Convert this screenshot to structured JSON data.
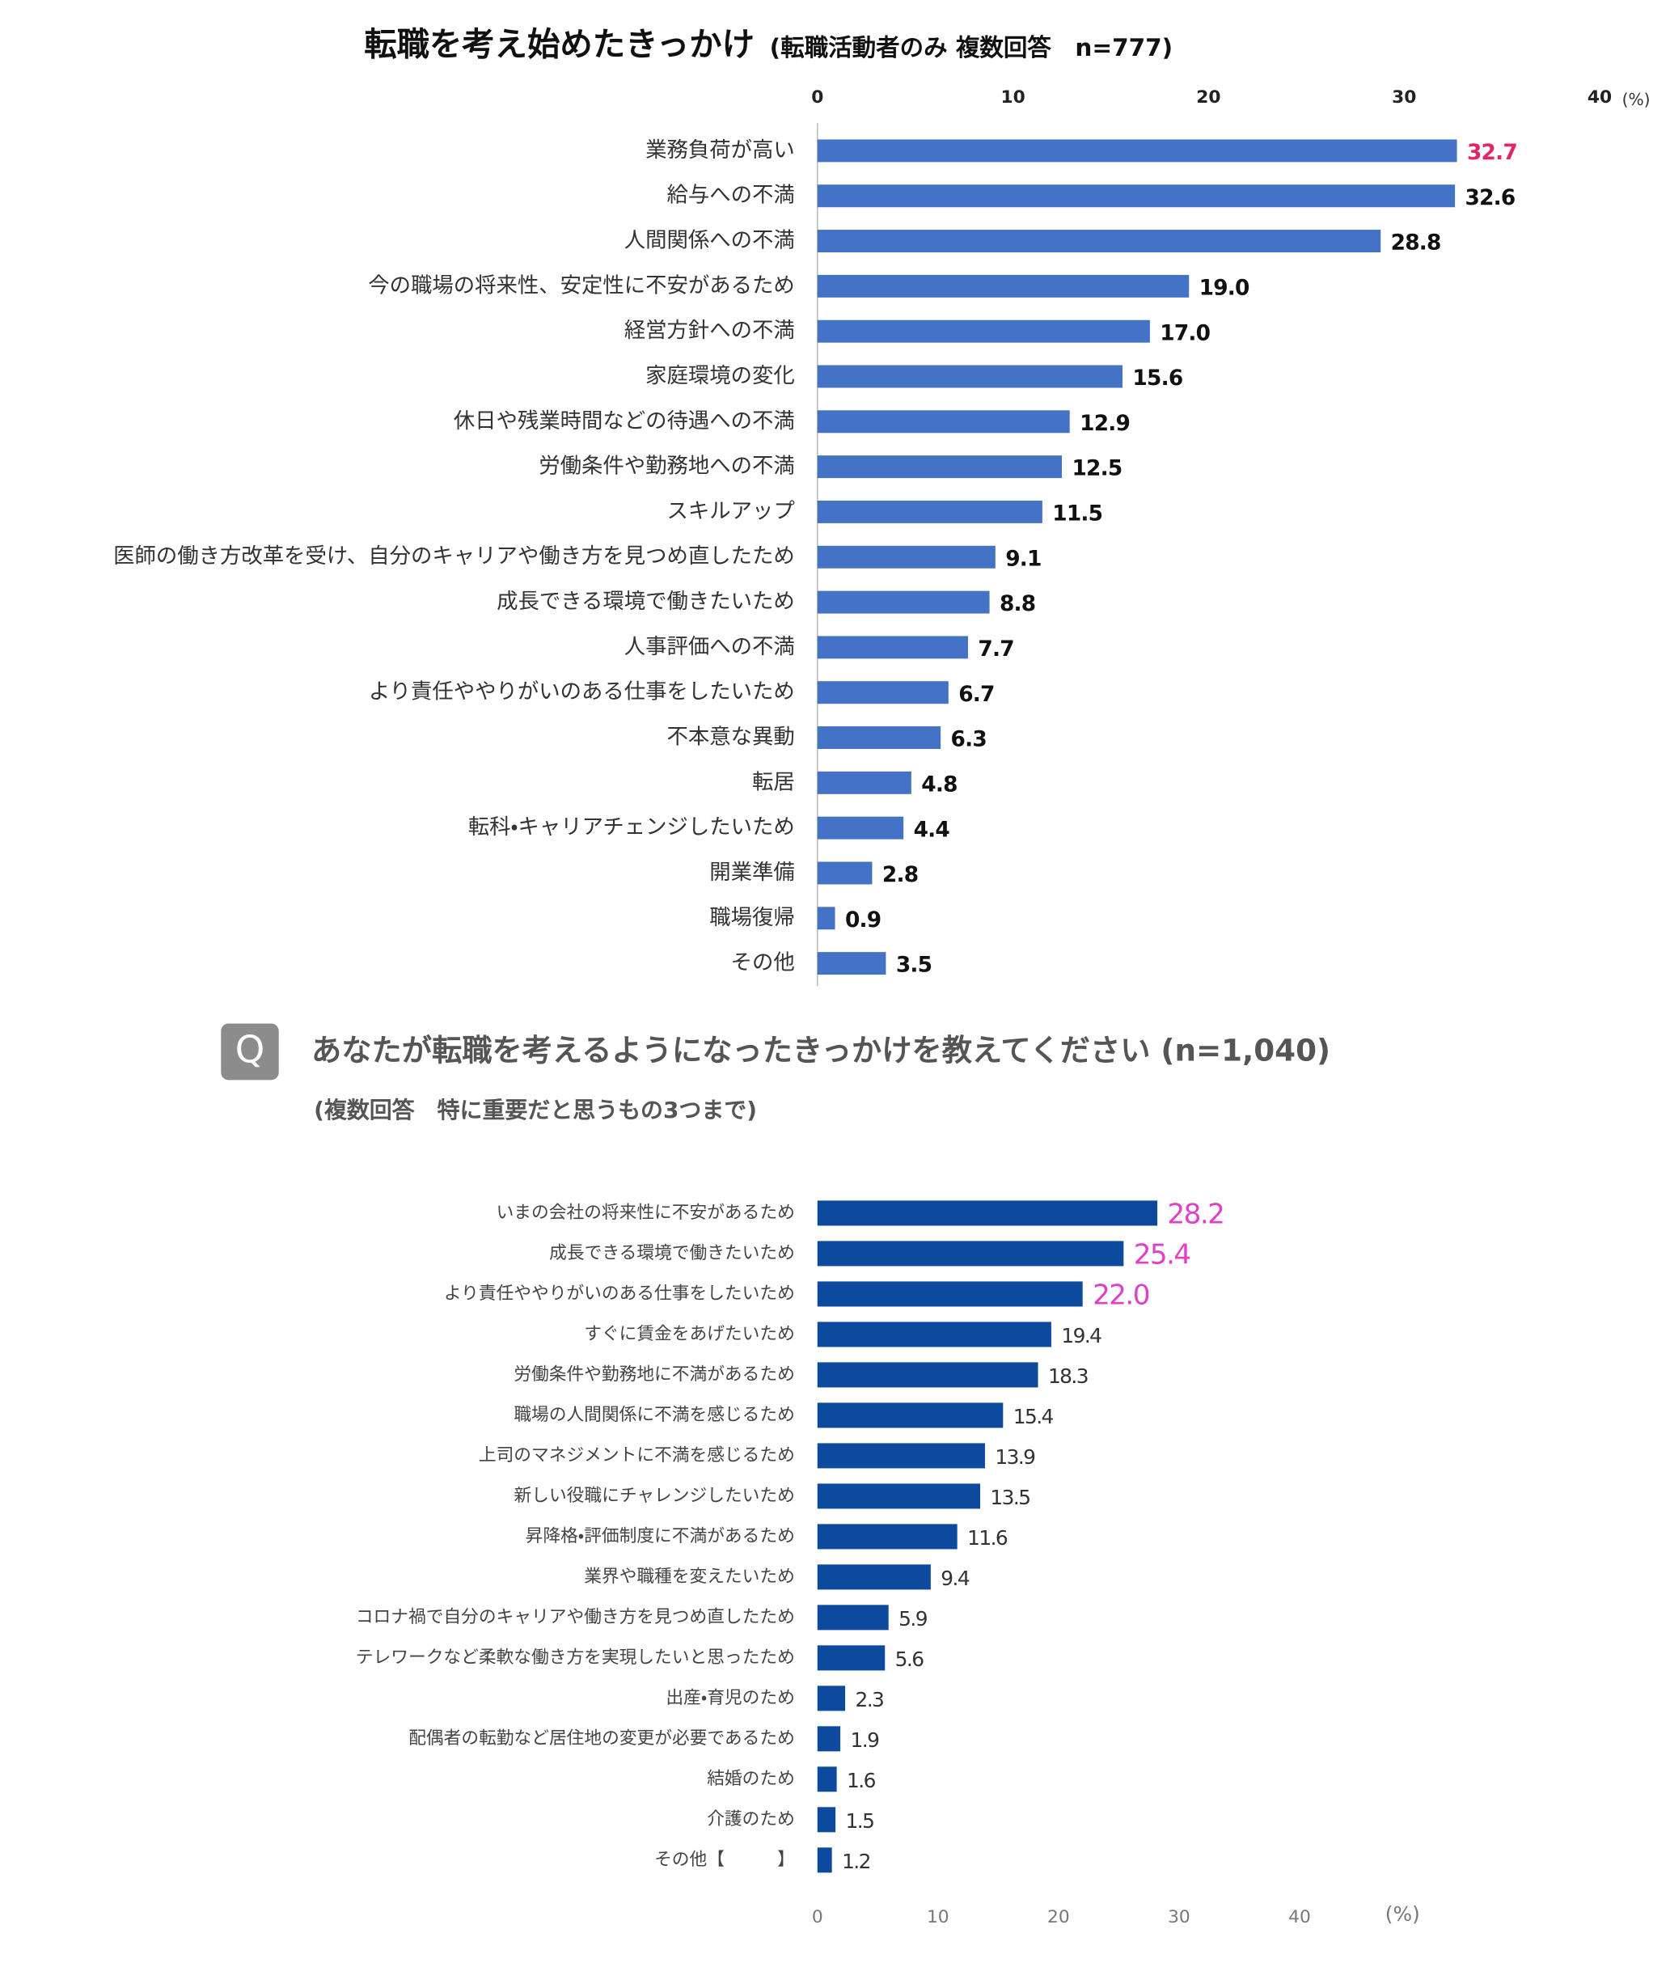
{
  "chart_data": [
    {
      "type": "bar",
      "orientation": "horizontal",
      "title": "転職を考え始めたきっかけ",
      "subtitle": "(転職活動者のみ 複数回答　n=777)",
      "x_unit": "(%)",
      "categories": [
        "業務負荷が高い",
        "給与への不満",
        "人間関係への不満",
        "今の職場の将来性、安定性に不安があるため",
        "経営方針への不満",
        "家庭環境の変化",
        "休日や残業時間などの待遇への不満",
        "労働条件や勤務地への不満",
        "スキルアップ",
        "医師の働き方改革を受け、自分のキャリアや働き方を見つめ直したため",
        "成長できる環境で働きたいため",
        "人事評価への不満",
        "より責任ややりがいのある仕事をしたいため",
        "不本意な異動",
        "転居",
        "転科・キャリアチェンジしたいため",
        "開業準備",
        "職場復帰",
        "その他"
      ],
      "values": [
        32.7,
        32.6,
        28.8,
        19.0,
        17.0,
        15.6,
        12.9,
        12.5,
        11.5,
        9.1,
        8.8,
        7.7,
        6.7,
        6.3,
        4.8,
        4.4,
        2.8,
        0.9,
        3.5
      ],
      "value_labels": [
        "32.7",
        "32.6",
        "28.8",
        "19.0",
        "17.0",
        "15.6",
        "12.9",
        "12.5",
        "11.5",
        "9.1",
        "8.8",
        "7.7",
        "6.7",
        "6.3",
        "4.8",
        "4.4",
        "2.8",
        "0.9",
        "3.5"
      ],
      "value_label_colors": [
        "#e0266a",
        "#111111",
        "#111111",
        "#111111",
        "#111111",
        "#111111",
        "#111111",
        "#111111",
        "#111111",
        "#111111",
        "#111111",
        "#111111",
        "#111111",
        "#111111",
        "#111111",
        "#111111",
        "#111111",
        "#111111",
        "#111111"
      ],
      "color": "#4472c4",
      "xlim": [
        0,
        40
      ],
      "xticks": [
        0,
        10,
        20,
        30,
        40
      ],
      "xaxis_position": "top",
      "grid": false
    },
    {
      "type": "bar",
      "orientation": "horizontal",
      "badge": "Q",
      "title": "あなたが転職を考えるようになったきっかけを教えてください (n=1,040)",
      "subtitle": "(複数回答　特に重要だと思うもの3つまで)",
      "x_unit": "(%)",
      "categories": [
        "いまの会社の将来性に不安があるため",
        "成長できる環境で働きたいため",
        "より責任ややりがいのある仕事をしたいため",
        "すぐに賃金をあげたいため",
        "労働条件や勤務地に不満があるため",
        "職場の人間関係に不満を感じるため",
        "上司のマネジメントに不満を感じるため",
        "新しい役職にチャレンジしたいため",
        "昇降格・評価制度に不満があるため",
        "業界や職種を変えたいため",
        "コロナ禍で自分のキャリアや働き方を見つめ直したため",
        "テレワークなど柔軟な働き方を実現したいと思ったため",
        "出産・育児のため",
        "配偶者の転勤など居住地の変更が必要であるため",
        "結婚のため",
        "介護のため",
        "その他【　　　】"
      ],
      "values": [
        28.2,
        25.4,
        22.0,
        19.4,
        18.3,
        15.4,
        13.9,
        13.5,
        11.6,
        9.4,
        5.9,
        5.6,
        2.3,
        1.9,
        1.6,
        1.5,
        1.2
      ],
      "value_labels": [
        "28.2",
        "25.4",
        "22.0",
        "19.4",
        "18.3",
        "15.4",
        "13.9",
        "13.5",
        "11.6",
        "9.4",
        "5.9",
        "5.6",
        "2.3",
        "1.9",
        "1.6",
        "1.5",
        "1.2"
      ],
      "value_label_colors": [
        "#e040c8",
        "#e040c8",
        "#e040c8",
        "#333333",
        "#333333",
        "#333333",
        "#333333",
        "#333333",
        "#333333",
        "#333333",
        "#333333",
        "#333333",
        "#333333",
        "#333333",
        "#333333",
        "#333333",
        "#333333"
      ],
      "color": "#0d4a9e",
      "xlim": [
        0,
        40
      ],
      "xticks": [
        0,
        10,
        20,
        30,
        40
      ],
      "xaxis_position": "bottom",
      "grid": false
    }
  ]
}
